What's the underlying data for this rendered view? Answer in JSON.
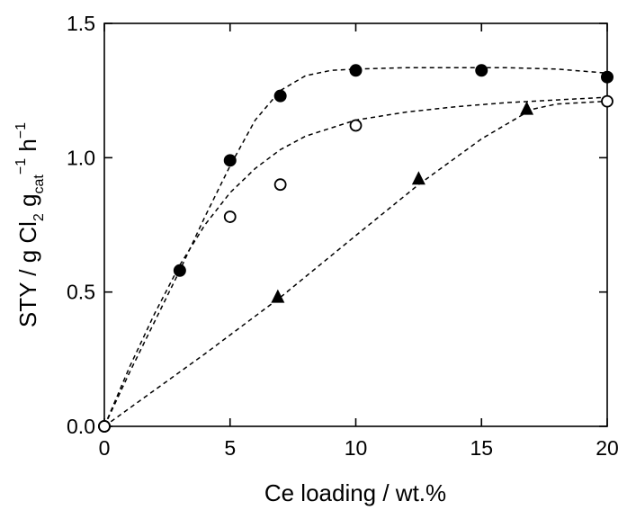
{
  "chart_data": {
    "type": "scatter",
    "xlabel": "Ce loading / wt.%",
    "ylabel_parts": {
      "main": "STY / g Cl",
      "sub1": "2",
      "g": " g",
      "sub2": "cat",
      "sup": "−1",
      "h": " h",
      "sup2": "−1"
    },
    "xlim": [
      0,
      20
    ],
    "ylim": [
      0,
      1.5
    ],
    "xticks": [
      0,
      5,
      10,
      15,
      20
    ],
    "xtick_labels": [
      "0",
      "5",
      "10",
      "15",
      "20"
    ],
    "yticks": [
      0.0,
      0.5,
      1.0,
      1.5
    ],
    "ytick_labels": [
      "0.0",
      "0.5",
      "1.0",
      "1.5"
    ],
    "grid": false,
    "series": [
      {
        "marker": "filled-circle",
        "x": [
          0,
          3,
          5,
          7,
          10,
          15,
          20
        ],
        "y": [
          0.0,
          0.58,
          0.99,
          1.23,
          1.325,
          1.325,
          1.3
        ],
        "fit": [
          [
            0,
            0
          ],
          [
            1,
            0.2
          ],
          [
            2,
            0.39
          ],
          [
            3,
            0.58
          ],
          [
            4,
            0.78
          ],
          [
            5,
            0.97
          ],
          [
            6,
            1.14
          ],
          [
            7,
            1.25
          ],
          [
            8,
            1.305
          ],
          [
            9,
            1.325
          ],
          [
            10,
            1.33
          ],
          [
            12,
            1.335
          ],
          [
            14,
            1.335
          ],
          [
            16,
            1.335
          ],
          [
            18,
            1.33
          ],
          [
            20,
            1.315
          ]
        ]
      },
      {
        "marker": "open-circle",
        "x": [
          0,
          5,
          7,
          10,
          20
        ],
        "y": [
          0.0,
          0.78,
          0.9,
          1.12,
          1.21
        ],
        "fit": [
          [
            0,
            0
          ],
          [
            1,
            0.22
          ],
          [
            2,
            0.42
          ],
          [
            3,
            0.6
          ],
          [
            4,
            0.75
          ],
          [
            5,
            0.87
          ],
          [
            6,
            0.96
          ],
          [
            7,
            1.03
          ],
          [
            8,
            1.08
          ],
          [
            10,
            1.14
          ],
          [
            12,
            1.17
          ],
          [
            14,
            1.19
          ],
          [
            16,
            1.205
          ],
          [
            18,
            1.215
          ],
          [
            20,
            1.225
          ]
        ]
      },
      {
        "marker": "filled-triangle",
        "x": [
          6.9,
          12.5,
          16.8
        ],
        "y": [
          0.48,
          0.92,
          1.18
        ],
        "fit": [
          [
            0,
            0
          ],
          [
            4,
            0.27
          ],
          [
            7,
            0.48
          ],
          [
            10,
            0.71
          ],
          [
            12.5,
            0.9
          ],
          [
            15,
            1.07
          ],
          [
            17,
            1.18
          ],
          [
            18,
            1.2
          ],
          [
            20,
            1.21
          ]
        ]
      }
    ]
  }
}
